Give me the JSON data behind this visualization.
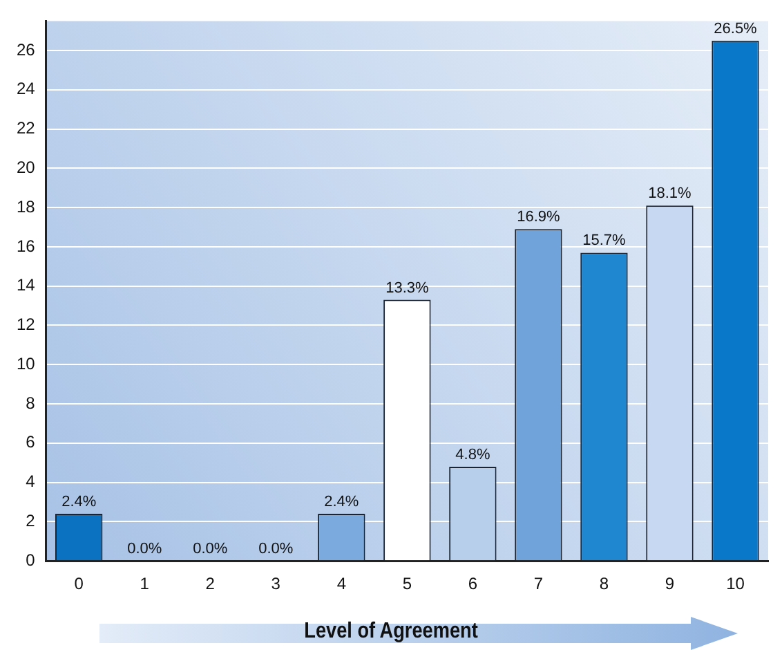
{
  "chart_data": {
    "type": "bar",
    "xlabel": "Level of Agreement",
    "categories": [
      "0",
      "1",
      "2",
      "3",
      "4",
      "5",
      "6",
      "7",
      "8",
      "9",
      "10"
    ],
    "values": [
      2.4,
      0.0,
      0.0,
      0.0,
      2.4,
      13.3,
      4.8,
      16.9,
      15.7,
      18.1,
      26.5
    ],
    "colors": [
      "#0a72c0",
      "#1f86d0",
      "#1f86d0",
      "#1f86d0",
      "#7aaade",
      "#ffffff",
      "#b8cfec",
      "#6fa3da",
      "#1f86d0",
      "#c7d9f2",
      "#0a78c8"
    ],
    "value_labels": [
      "2.4%",
      "0.0%",
      "0.0%",
      "0.0%",
      "2.4%",
      "13.3%",
      "4.8%",
      "16.9%",
      "15.7%",
      "18.1%",
      "26.5%"
    ],
    "ylim": [
      0,
      27.5
    ],
    "yticks": [
      0,
      2,
      4,
      6,
      8,
      10,
      12,
      14,
      16,
      18,
      20,
      22,
      24,
      26
    ],
    "grid": "y",
    "legend": false
  }
}
